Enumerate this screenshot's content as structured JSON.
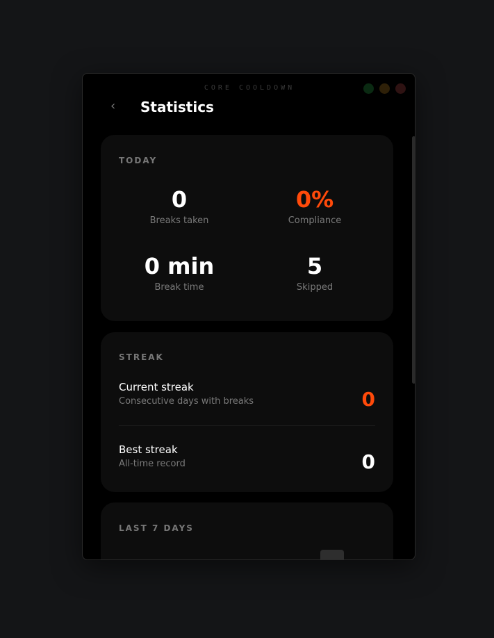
{
  "app": {
    "name": "CORE COOLDOWN",
    "title": "Statistics",
    "back_icon": "chevron-left-icon"
  },
  "colors": {
    "accent": "#ff4a0a",
    "window_controls": [
      "#0a2a12",
      "#2e2008",
      "#2e1212"
    ]
  },
  "today": {
    "heading": "TODAY",
    "stats": [
      {
        "value": "0",
        "label": "Breaks taken"
      },
      {
        "value": "0%",
        "label": "Compliance"
      },
      {
        "value": "0 min",
        "label": "Break time"
      },
      {
        "value": "5",
        "label": "Skipped"
      }
    ]
  },
  "streak": {
    "heading": "STREAK",
    "rows": [
      {
        "name": "Current streak",
        "desc": "Consecutive days with breaks",
        "value": "0"
      },
      {
        "name": "Best streak",
        "desc": "All-time record",
        "value": "0"
      }
    ]
  },
  "last7": {
    "heading": "LAST 7 DAYS"
  }
}
